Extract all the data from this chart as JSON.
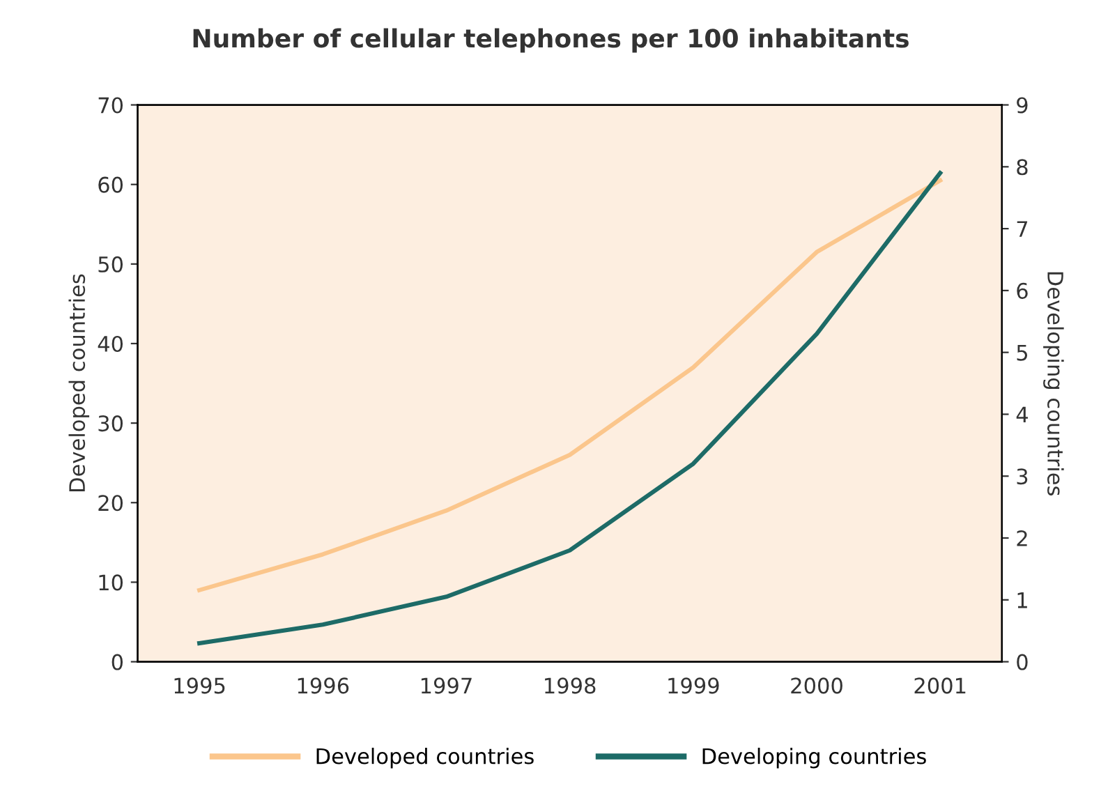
{
  "chart_data": {
    "type": "line",
    "title": "Number of cellular telephones per 100 inhabitants",
    "ylabel": "Developed countries",
    "y2label": "Developing countries",
    "categories": [
      "1995",
      "1996",
      "1997",
      "1998",
      "1999",
      "2000",
      "2001"
    ],
    "series": [
      {
        "name": "Developed countries",
        "color": "#fbc68c",
        "values": [
          9,
          13.5,
          19,
          26,
          37,
          51.5,
          60.5
        ]
      },
      {
        "name": "Developing countries",
        "color": "#1d6b67",
        "axis": "y2",
        "values": [
          0.3,
          0.6,
          1.05,
          1.8,
          3.2,
          5.3,
          7.9
        ]
      }
    ],
    "ylim": [
      0,
      70
    ],
    "yticks": [
      0,
      10,
      20,
      30,
      40,
      50,
      60,
      70
    ],
    "y2lim": [
      0,
      9
    ],
    "y2ticks": [
      0,
      1,
      2,
      3,
      4,
      5,
      6,
      7,
      8,
      9
    ],
    "grid": false,
    "legend": "bottom",
    "marker": "none",
    "line_style": "solid"
  }
}
